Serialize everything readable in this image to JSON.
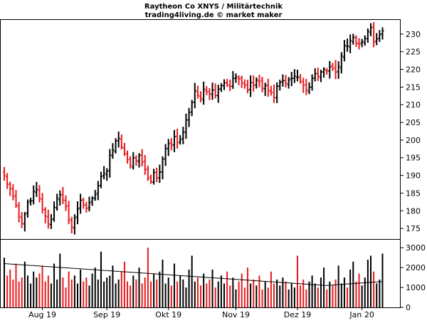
{
  "header": {
    "title": "Raytheon Co XNYS / Militärtechnik",
    "subtitle": "trading4living.de © market maker"
  },
  "colors": {
    "up": "#000000",
    "down": "#e8191c",
    "axis": "#000000",
    "moving_average": "#000000"
  },
  "chart_data": [
    {
      "type": "ohlc",
      "title": "Raytheon Co XNYS / Militärtechnik",
      "ylim": [
        172,
        234
      ],
      "y_ticks": [
        175,
        180,
        185,
        190,
        195,
        200,
        205,
        210,
        215,
        220,
        225,
        230
      ],
      "x_tick_labels": [
        {
          "label": "Aug 19",
          "bar": 13
        },
        {
          "label": "Sep 19",
          "bar": 35
        },
        {
          "label": "Okt 19",
          "bar": 56
        },
        {
          "label": "Nov 19",
          "bar": 79
        },
        {
          "label": "Dez 19",
          "bar": 100
        },
        {
          "label": "Jan 20",
          "bar": 122
        }
      ],
      "grid": false,
      "closes": [
        190,
        187.5,
        186.2,
        184,
        181.5,
        178.4,
        176.5,
        179,
        182.4,
        182.8,
        185.5,
        186,
        183.5,
        180.4,
        178.5,
        176.3,
        177.5,
        181,
        183.5,
        184.5,
        183,
        181.2,
        177.5,
        175.4,
        178,
        180.5,
        183,
        181.7,
        180.7,
        182.2,
        183.5,
        184.6,
        187.1,
        189.7,
        190.6,
        191.2,
        195.8,
        197.2,
        199.8,
        200.5,
        198,
        196.2,
        194.4,
        192.8,
        195,
        194.1,
        195.7,
        193.7,
        191.8,
        189.2,
        188.3,
        190.8,
        189.3,
        191,
        194.6,
        197.5,
        199,
        198.5,
        201,
        199.2,
        200.1,
        202.3,
        205.7,
        207.8,
        210.7,
        214,
        212.6,
        211.8,
        214.4,
        213.6,
        213.1,
        214.2,
        212.7,
        214.4,
        215.4,
        216.2,
        215.7,
        215.2,
        217.5,
        217.9,
        217.3,
        216.2,
        215.5,
        214.2,
        216.3,
        215.6,
        217,
        216.5,
        214.7,
        215.4,
        214,
        213.4,
        212.1,
        215.2,
        216.3,
        216.8,
        216.1,
        217,
        217.5,
        218.1,
        217.9,
        216.6,
        215.5,
        214.2,
        215,
        217.5,
        218.8,
        218.1,
        219.3,
        220,
        219.6,
        220.7,
        220.2,
        219.2,
        220.8,
        223.8,
        226.7,
        226.6,
        228.2,
        229.1,
        227.4,
        227.1,
        227.9,
        228.8,
        230.8,
        231.8,
        227.7,
        228.6,
        229.8,
        230.9
      ]
    },
    {
      "type": "bar",
      "title": "",
      "ylim": [
        0,
        3400
      ],
      "y_ticks": [
        0,
        1000,
        2000,
        3000
      ],
      "volumes": [
        2500,
        1600,
        1900,
        1400,
        2200,
        1300,
        1500,
        2300,
        1600,
        1200,
        1800,
        1500,
        1700,
        2100,
        1300,
        1600,
        1200,
        2200,
        1400,
        2700,
        1500,
        1000,
        1800,
        1400,
        1600,
        1200,
        1900,
        1300,
        1500,
        1100,
        1700,
        2000,
        1400,
        2800,
        1300,
        1500,
        1600,
        2100,
        1200,
        1400,
        1800,
        2300,
        1300,
        1100,
        1600,
        1400,
        2000,
        1200,
        1500,
        3000,
        1300,
        1700,
        1400,
        1800,
        2400,
        1200,
        1500,
        1100,
        2200,
        1300,
        1600,
        1400,
        1000,
        1900,
        2600,
        1300,
        1500,
        1100,
        1700,
        1200,
        1400,
        1900,
        1000,
        1300,
        1600,
        1200,
        1800,
        1100,
        1500,
        900,
        1300,
        1700,
        1000,
        2000,
        1200,
        1400,
        1100,
        1600,
        900,
        1300,
        1000,
        1800,
        1200,
        1400,
        1100,
        1500,
        1300,
        900,
        1200,
        1000,
        2600,
        1100,
        1400,
        900,
        1300,
        1600,
        1200,
        1000,
        1500,
        2000,
        900,
        1300,
        1100,
        1400,
        2100,
        1200,
        1500,
        1000,
        1900,
        2300,
        1300,
        1700,
        1100,
        1500,
        2400,
        2600,
        1800,
        1200,
        1400,
        2700
      ],
      "moving_average_start": 2200,
      "moving_average_end": 1300,
      "moving_average_min": 1100
    }
  ]
}
